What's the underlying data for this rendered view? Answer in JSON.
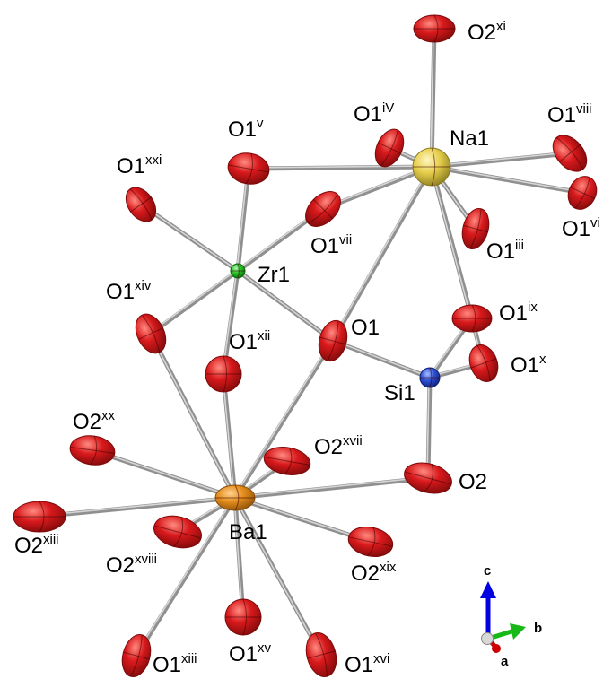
{
  "structure": {
    "atoms": [
      {
        "id": "O2xi",
        "element": "O",
        "name": "O2",
        "sup": "xi"
      },
      {
        "id": "O1iv",
        "element": "O",
        "name": "O1",
        "sup": "iV"
      },
      {
        "id": "Na1",
        "element": "Na",
        "name": "Na1",
        "sup": ""
      },
      {
        "id": "O1viii",
        "element": "O",
        "name": "O1",
        "sup": "viii"
      },
      {
        "id": "O1vi",
        "element": "O",
        "name": "O1",
        "sup": "vi"
      },
      {
        "id": "O1v",
        "element": "O",
        "name": "O1",
        "sup": "v"
      },
      {
        "id": "O1xxi",
        "element": "O",
        "name": "O1",
        "sup": "xxi"
      },
      {
        "id": "O1vii",
        "element": "O",
        "name": "O1",
        "sup": "vii"
      },
      {
        "id": "O1iii",
        "element": "O",
        "name": "O1",
        "sup": "iii"
      },
      {
        "id": "Zr1",
        "element": "Zr",
        "name": "Zr1",
        "sup": ""
      },
      {
        "id": "O1xiv",
        "element": "O",
        "name": "O1",
        "sup": "xiv"
      },
      {
        "id": "O1",
        "element": "O",
        "name": "O1",
        "sup": ""
      },
      {
        "id": "O1ix",
        "element": "O",
        "name": "O1",
        "sup": "ix"
      },
      {
        "id": "O1xii",
        "element": "O",
        "name": "O1",
        "sup": "xii"
      },
      {
        "id": "O1x",
        "element": "O",
        "name": "O1",
        "sup": "x"
      },
      {
        "id": "Si1",
        "element": "Si",
        "name": "Si1",
        "sup": ""
      },
      {
        "id": "O2xx",
        "element": "O",
        "name": "O2",
        "sup": "xx"
      },
      {
        "id": "O2xvii",
        "element": "O",
        "name": "O2",
        "sup": "xvii"
      },
      {
        "id": "O2",
        "element": "O",
        "name": "O2",
        "sup": ""
      },
      {
        "id": "Ba1",
        "element": "Ba",
        "name": "Ba1",
        "sup": ""
      },
      {
        "id": "O2xiii",
        "element": "O",
        "name": "O2",
        "sup": "xiii"
      },
      {
        "id": "O2xviii",
        "element": "O",
        "name": "O2",
        "sup": "xviii"
      },
      {
        "id": "O2xix",
        "element": "O",
        "name": "O2",
        "sup": "xix"
      },
      {
        "id": "O1xiii",
        "element": "O",
        "name": "O1",
        "sup": "xiii"
      },
      {
        "id": "O1xv",
        "element": "O",
        "name": "O1",
        "sup": "xv"
      },
      {
        "id": "O1xvi",
        "element": "O",
        "name": "O1",
        "sup": "xvi"
      }
    ],
    "bonds": [
      [
        "Na1",
        "O2xi"
      ],
      [
        "Na1",
        "O1iv"
      ],
      [
        "Na1",
        "O1viii"
      ],
      [
        "Na1",
        "O1vi"
      ],
      [
        "Na1",
        "O1v"
      ],
      [
        "Na1",
        "O1vii"
      ],
      [
        "Na1",
        "O1iii"
      ],
      [
        "Na1",
        "O1"
      ],
      [
        "Na1",
        "O1ix"
      ],
      [
        "Na1",
        "O1x"
      ],
      [
        "Zr1",
        "O1v"
      ],
      [
        "Zr1",
        "O1xxi"
      ],
      [
        "Zr1",
        "O1vii"
      ],
      [
        "Zr1",
        "O1xiv"
      ],
      [
        "Zr1",
        "O1"
      ],
      [
        "Zr1",
        "O1xii"
      ],
      [
        "Si1",
        "O1"
      ],
      [
        "Si1",
        "O1ix"
      ],
      [
        "Si1",
        "O1x"
      ],
      [
        "Si1",
        "O2"
      ],
      [
        "Ba1",
        "O1xiv"
      ],
      [
        "Ba1",
        "O1xii"
      ],
      [
        "Ba1",
        "O1"
      ],
      [
        "Ba1",
        "O2xx"
      ],
      [
        "Ba1",
        "O2xvii"
      ],
      [
        "Ba1",
        "O2"
      ],
      [
        "Ba1",
        "O2xiii"
      ],
      [
        "Ba1",
        "O2xviii"
      ],
      [
        "Ba1",
        "O2xix"
      ],
      [
        "Ba1",
        "O1xiii"
      ],
      [
        "Ba1",
        "O1xv"
      ],
      [
        "Ba1",
        "O1xvi"
      ]
    ],
    "element_colors": {
      "O": {
        "base": "#d8191c",
        "light": "#ff8a80",
        "dark": "#7d0a0a"
      },
      "Na": {
        "base": "#e6cf4c",
        "light": "#fff6c2",
        "dark": "#8a7a1e"
      },
      "Zr": {
        "base": "#27c427",
        "light": "#b4f5b4",
        "dark": "#0b6b0b"
      },
      "Si": {
        "base": "#2d52d8",
        "light": "#a9bcff",
        "dark": "#0f1e72"
      },
      "Ba": {
        "base": "#e48d1c",
        "light": "#ffd391",
        "dark": "#8a4f08"
      }
    },
    "bond_color": "#909090"
  },
  "axes": {
    "c": {
      "label": "c",
      "color": "#0000e0"
    },
    "b": {
      "label": "b",
      "color": "#18b818"
    },
    "a": {
      "label": "a",
      "color": "#cc0000"
    }
  }
}
